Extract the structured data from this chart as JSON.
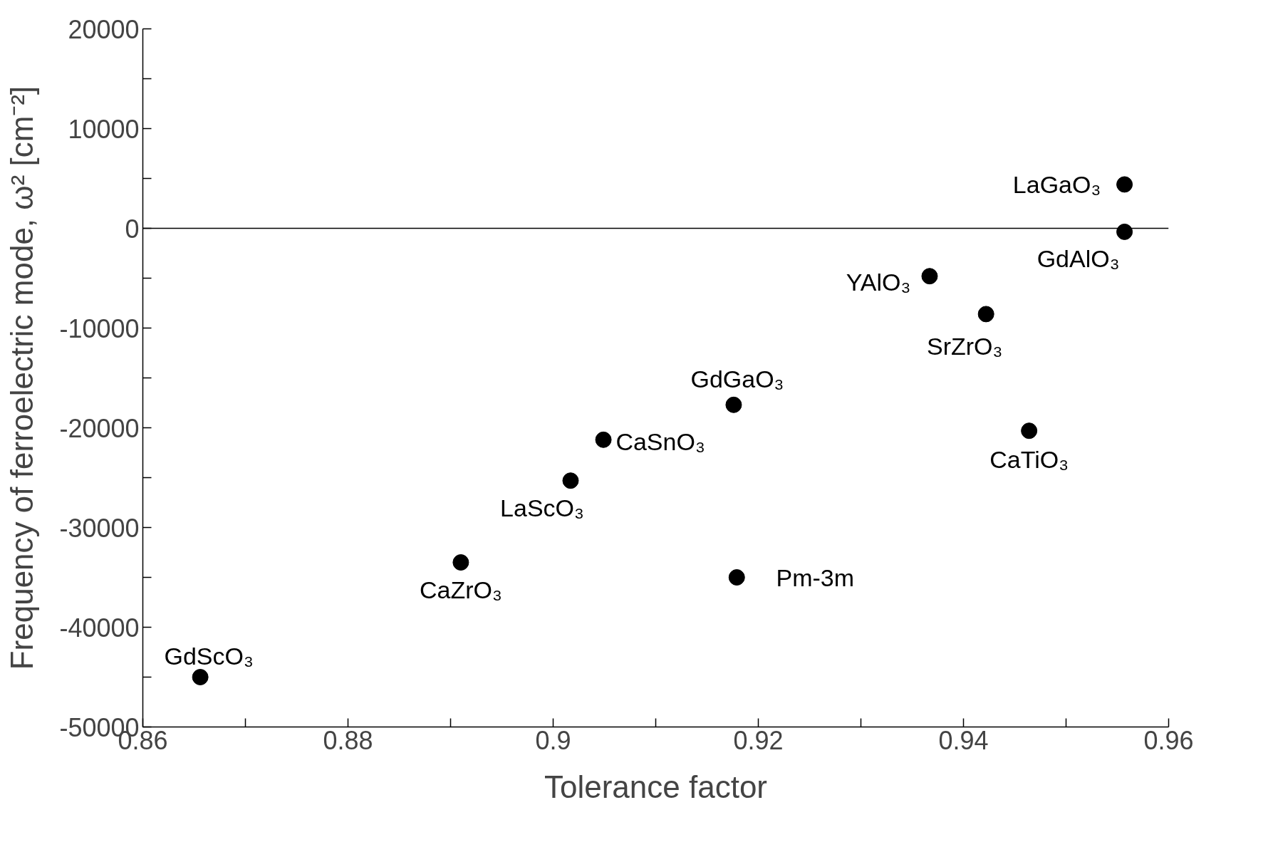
{
  "chart_data": {
    "type": "scatter",
    "xlabel": "Tolerance factor",
    "ylabel": "Frequency of ferroelectric mode, ω² [cm⁻²]",
    "x": [
      0.8656,
      0.891,
      0.9017,
      0.9049,
      0.9176,
      0.9179,
      0.9367,
      0.9422,
      0.9464,
      0.9557,
      0.9557
    ],
    "series": [
      {
        "color": "#000000",
        "values": [
          -45000,
          -33500,
          -25300,
          -21200,
          -17700,
          -35000,
          -4800,
          -8600,
          -20300,
          -350,
          4400
        ]
      }
    ],
    "marker": "circle",
    "grid": false,
    "xlim": [
      0.86,
      0.96
    ],
    "ylim": [
      -50000,
      20000
    ],
    "xticks": [
      0.86,
      {
        "value": 0.87,
        "label": null
      },
      0.88,
      {
        "value": 0.89,
        "label": null
      },
      {
        "value": 0.9,
        "label": "0.9"
      },
      {
        "value": 0.91,
        "label": null
      },
      0.92,
      {
        "value": 0.93,
        "label": null
      },
      0.94,
      {
        "value": 0.95,
        "label": null
      },
      0.96
    ],
    "yticks": [
      -50000,
      {
        "value": -45000,
        "label": null
      },
      -40000,
      {
        "value": -35000,
        "label": null
      },
      -30000,
      {
        "value": -25000,
        "label": null
      },
      -20000,
      {
        "value": -15000,
        "label": null
      },
      -10000,
      {
        "value": -5000,
        "label": null
      },
      0,
      {
        "value": 5000,
        "label": null
      },
      10000,
      {
        "value": 15000,
        "label": null
      },
      20000
    ],
    "ref_lines": [
      {
        "axis": "y",
        "value": 0,
        "color": "#000000"
      }
    ],
    "annotations": [
      {
        "text": "GdScO₃",
        "x": 0.8656,
        "y": -45000
      },
      {
        "text": "CaZrO₃",
        "x": 0.891,
        "y": -33500
      },
      {
        "text": "LaScO₃",
        "x": 0.9017,
        "y": -25300
      },
      {
        "text": "CaSnO₃",
        "x": 0.9049,
        "y": -21200
      },
      {
        "text": "GdGaO₃",
        "x": 0.9176,
        "y": -17700
      },
      {
        "text": "Pm-3m",
        "x": 0.9179,
        "y": -35000
      },
      {
        "text": "YAlO₃",
        "x": 0.9367,
        "y": -4800
      },
      {
        "text": "SrZrO₃",
        "x": 0.9422,
        "y": -8600
      },
      {
        "text": "CaTiO₃",
        "x": 0.9464,
        "y": -20300
      },
      {
        "text": "GdAlO₃",
        "x": 0.9557,
        "y": -350
      },
      {
        "text": "LaGaO₃",
        "x": 0.9557,
        "y": 4400
      }
    ]
  }
}
